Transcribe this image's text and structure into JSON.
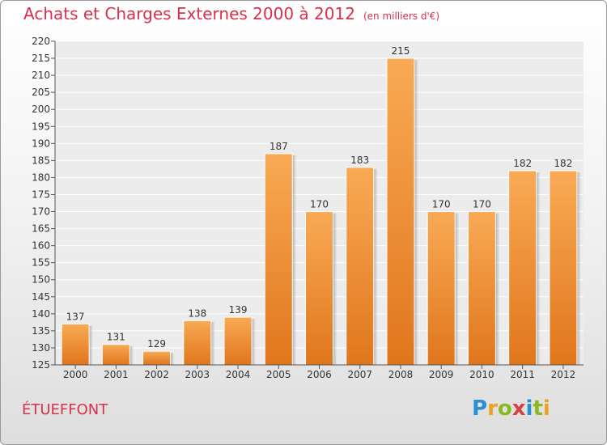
{
  "header": {
    "title": "Achats et Charges Externes 2000 à 2012",
    "subtitle": "(en milliers d'€)"
  },
  "footer": {
    "place": "ÉTUEFFONT",
    "logo_letters": [
      {
        "char": "P",
        "color": "#2a8fd0"
      },
      {
        "char": "r",
        "color": "#f0a020"
      },
      {
        "char": "o",
        "color": "#8ab820"
      },
      {
        "char": "x",
        "color": "#d94040"
      },
      {
        "char": "i",
        "color": "#2a8fd0"
      },
      {
        "char": "t",
        "color": "#8ab820"
      },
      {
        "char": "i",
        "color": "#f0a020"
      }
    ]
  },
  "chart_data": {
    "type": "bar",
    "categories": [
      "2000",
      "2001",
      "2002",
      "2003",
      "2004",
      "2005",
      "2006",
      "2007",
      "2008",
      "2009",
      "2010",
      "2011",
      "2012"
    ],
    "values": [
      137,
      131,
      129,
      138,
      139,
      187,
      170,
      183,
      215,
      170,
      170,
      182,
      182
    ],
    "ylim": [
      125,
      220
    ],
    "yticks": [
      125,
      130,
      135,
      140,
      145,
      150,
      155,
      160,
      165,
      170,
      175,
      180,
      185,
      190,
      195,
      200,
      205,
      210,
      215,
      220
    ],
    "grid": true,
    "bar_color": "#f08a30"
  }
}
